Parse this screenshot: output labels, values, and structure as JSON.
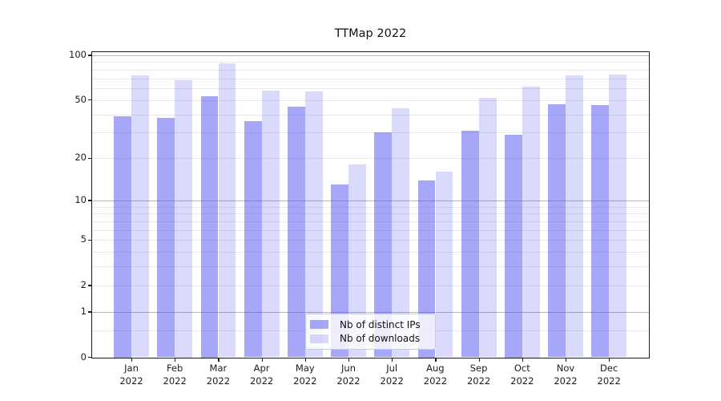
{
  "figure": {
    "background": "#ffffff"
  },
  "chart_data": {
    "type": "bar",
    "title": "TTMap 2022",
    "categories": [
      "Jan 2022",
      "Feb 2022",
      "Mar 2022",
      "Apr 2022",
      "May 2022",
      "Jun 2022",
      "Jul 2022",
      "Aug 2022",
      "Sep 2022",
      "Oct 2022",
      "Nov 2022",
      "Dec 2022"
    ],
    "series": [
      {
        "name": "Nb of distinct IPs",
        "fill": "rgba(80,80,245,0.50)",
        "values": [
          39,
          38,
          53,
          36,
          45,
          13,
          30,
          14,
          31,
          29,
          47,
          46
        ]
      },
      {
        "name": "Nb of downloads",
        "fill": "rgba(80,80,245,0.21)",
        "values": [
          73,
          68,
          88,
          58,
          57,
          18,
          44,
          16,
          52,
          62,
          73,
          74
        ]
      }
    ],
    "xlabel": "",
    "ylabel": "",
    "yscale": "log1p",
    "ylim": [
      0,
      105
    ],
    "yticks": [
      0,
      1,
      2,
      5,
      10,
      20,
      50,
      100
    ],
    "ytick_labels": [
      "0",
      "1",
      "2",
      "5",
      "10",
      "20",
      "50",
      "100"
    ],
    "grid": {
      "orientation": "horizontal",
      "major_values": [
        1,
        10,
        100
      ],
      "minor_values": [
        0.5,
        2,
        3,
        4,
        5,
        6,
        7,
        8,
        9,
        20,
        30,
        40,
        50,
        60,
        70,
        80,
        90
      ],
      "major_color": "#b5b5b5",
      "minor_color": "#e9e9e9"
    },
    "legend": {
      "position": "lower center",
      "entries": [
        "Nb of distinct IPs",
        "Nb of downloads"
      ]
    }
  }
}
